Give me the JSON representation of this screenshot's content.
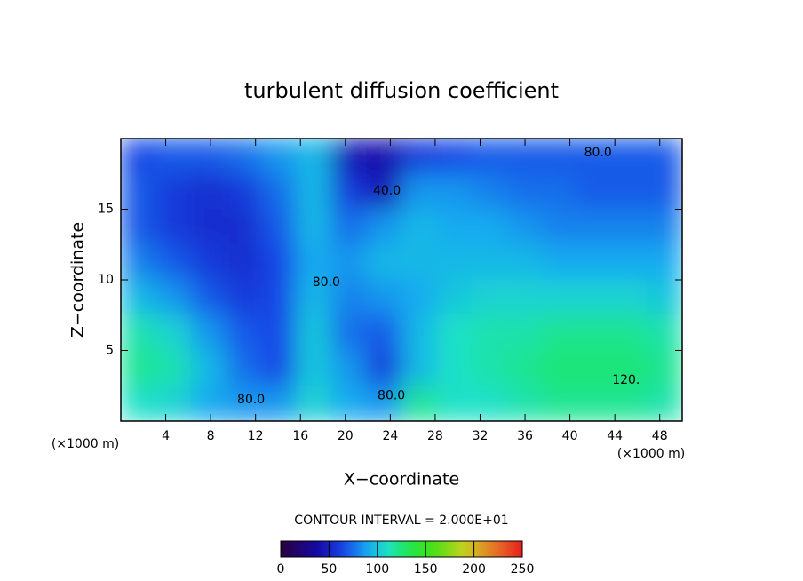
{
  "chart_data": {
    "type": "heatmap",
    "title": "turbulent diffusion coefficient",
    "xlabel": "X−coordinate",
    "ylabel": "Z−coordinate",
    "unit": "(×1000 m)",
    "xlim": [
      0,
      50
    ],
    "xticks": [
      4,
      8,
      12,
      16,
      20,
      24,
      28,
      32,
      36,
      40,
      44,
      48
    ],
    "ylim": [
      0,
      20
    ],
    "yticks": [
      5,
      10,
      15
    ],
    "z": [
      [
        65,
        70,
        70,
        75,
        85,
        95,
        45,
        40,
        60,
        65,
        70,
        70,
        70,
        70,
        70,
        70
      ],
      [
        70,
        60,
        55,
        60,
        75,
        95,
        60,
        45,
        85,
        85,
        80,
        75,
        75,
        70,
        70,
        70
      ],
      [
        70,
        60,
        55,
        55,
        70,
        95,
        75,
        85,
        95,
        90,
        90,
        85,
        80,
        80,
        80,
        80
      ],
      [
        80,
        70,
        60,
        55,
        65,
        90,
        85,
        95,
        95,
        95,
        95,
        95,
        90,
        90,
        90,
        90
      ],
      [
        95,
        85,
        70,
        60,
        65,
        95,
        80,
        85,
        90,
        100,
        105,
        105,
        105,
        105,
        105,
        100
      ],
      [
        115,
        105,
        85,
        70,
        65,
        100,
        75,
        70,
        95,
        110,
        115,
        115,
        120,
        120,
        120,
        115
      ],
      [
        120,
        115,
        95,
        75,
        65,
        100,
        85,
        60,
        95,
        110,
        115,
        120,
        125,
        125,
        125,
        120
      ],
      [
        110,
        105,
        90,
        85,
        85,
        105,
        90,
        85,
        120,
        110,
        110,
        115,
        120,
        120,
        120,
        115
      ]
    ],
    "contour_labels": [
      {
        "value": 80,
        "label": "80.0",
        "x": 42.5,
        "z": 19.0
      },
      {
        "value": 40,
        "label": "40.0",
        "x": 23.7,
        "z": 16.3
      },
      {
        "value": 80,
        "label": "80.0",
        "x": 18.3,
        "z": 9.8
      },
      {
        "value": 80,
        "label": "80.0",
        "x": 11.6,
        "z": 1.5
      },
      {
        "value": 80,
        "label": "80.0",
        "x": 24.1,
        "z": 1.8
      },
      {
        "value": 120,
        "label": "120.",
        "x": 45.0,
        "z": 2.9
      }
    ],
    "colorbar": {
      "title": "CONTOUR INTERVAL = 2.000E+01",
      "lim": [
        0,
        250
      ],
      "ticks": [
        0,
        50,
        100,
        150,
        200,
        250
      ]
    }
  }
}
